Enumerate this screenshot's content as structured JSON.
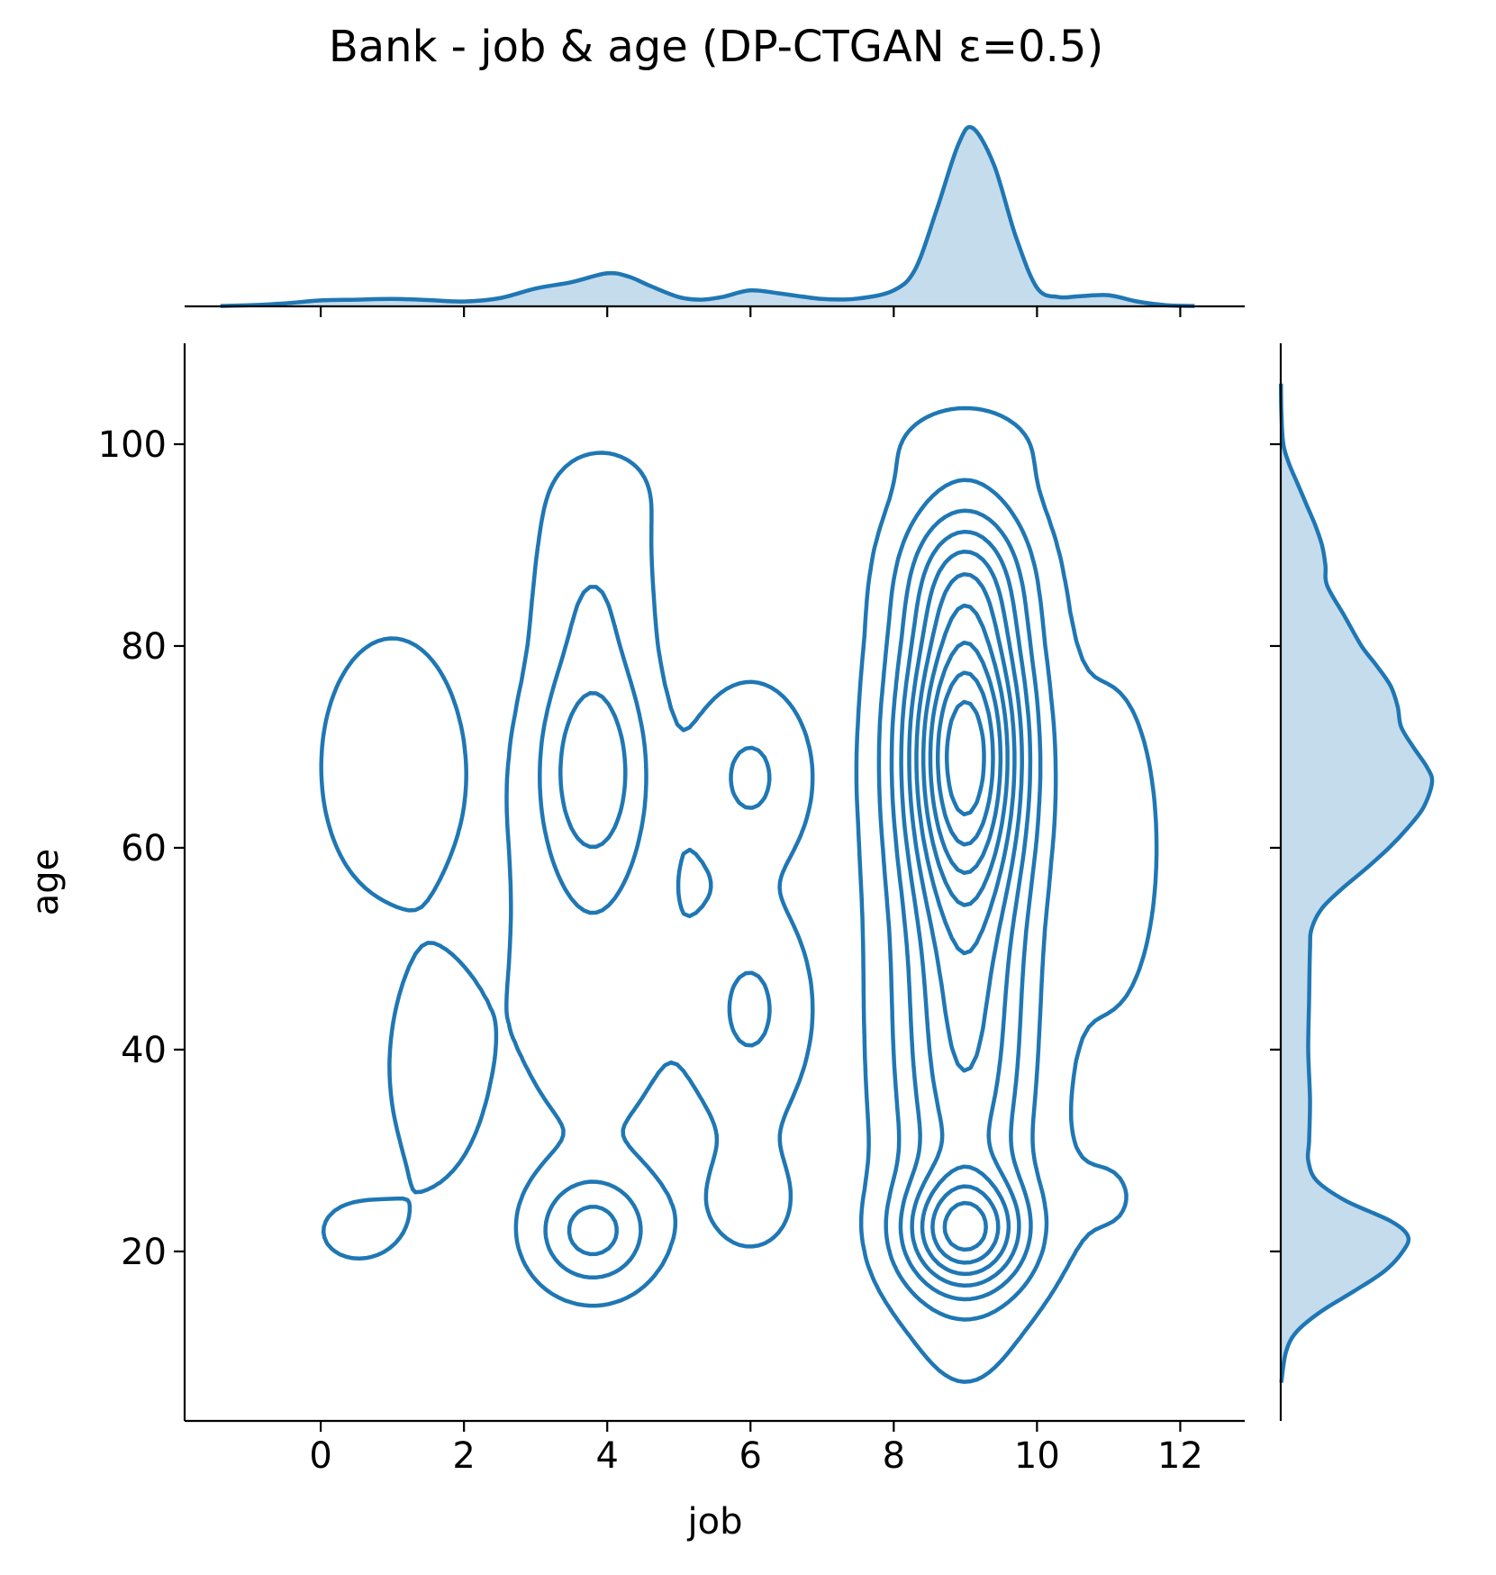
{
  "chart_data": {
    "type": "kde-joint",
    "title": "Bank - job & age (DP-CTGAN ε=0.5)",
    "xlabel": "job",
    "ylabel": "age",
    "xlim": [
      -1.9,
      12.9
    ],
    "ylim": [
      3.2,
      110
    ],
    "x_ticks": [
      0,
      2,
      4,
      6,
      8,
      10,
      12
    ],
    "y_ticks": [
      20,
      40,
      60,
      80,
      100
    ],
    "color": "#1f77b4",
    "fill_color": "#c5dced",
    "grid": false,
    "marginal_x": {
      "x": [
        -1.4,
        -1.0,
        -0.5,
        0.0,
        0.5,
        1.0,
        1.5,
        2.0,
        2.5,
        3.0,
        3.5,
        4.0,
        4.3,
        4.6,
        5.0,
        5.3,
        5.6,
        6.0,
        6.4,
        7.0,
        7.5,
        8.0,
        8.3,
        8.6,
        8.9,
        9.1,
        9.4,
        9.7,
        10.0,
        10.3,
        10.6,
        11.0,
        11.4,
        11.8,
        12.2
      ],
      "density": [
        0.002,
        0.006,
        0.016,
        0.032,
        0.036,
        0.04,
        0.034,
        0.026,
        0.044,
        0.096,
        0.13,
        0.178,
        0.16,
        0.11,
        0.05,
        0.036,
        0.05,
        0.086,
        0.07,
        0.04,
        0.042,
        0.086,
        0.2,
        0.52,
        0.87,
        0.96,
        0.76,
        0.38,
        0.1,
        0.05,
        0.055,
        0.06,
        0.026,
        0.006,
        0.002
      ]
    },
    "marginal_y": {
      "y": [
        7,
        10,
        12,
        14,
        16,
        18,
        20,
        21.5,
        23,
        25,
        27,
        29,
        31,
        35,
        40,
        45,
        50,
        52,
        54,
        56,
        58,
        60,
        62,
        64,
        66.5,
        68,
        70,
        72,
        74,
        76,
        78,
        80,
        83,
        86,
        88,
        90,
        92,
        94,
        96,
        98,
        100,
        103,
        106
      ],
      "density": [
        0.003,
        0.03,
        0.09,
        0.23,
        0.42,
        0.6,
        0.71,
        0.74,
        0.64,
        0.38,
        0.21,
        0.16,
        0.165,
        0.17,
        0.16,
        0.165,
        0.17,
        0.18,
        0.24,
        0.36,
        0.5,
        0.63,
        0.74,
        0.83,
        0.88,
        0.85,
        0.77,
        0.7,
        0.68,
        0.64,
        0.56,
        0.47,
        0.37,
        0.27,
        0.26,
        0.24,
        0.2,
        0.15,
        0.1,
        0.05,
        0.015,
        0.004,
        0.001
      ]
    },
    "kde_components": [
      {
        "x": 9.0,
        "y": 70.0,
        "sx": 0.55,
        "sy": 10.5,
        "w": 3.0
      },
      {
        "x": 9.0,
        "y": 42.0,
        "sx": 0.6,
        "sy": 15.0,
        "w": 1.2
      },
      {
        "x": 9.0,
        "y": 22.0,
        "sx": 0.55,
        "sy": 3.8,
        "w": 1.6
      },
      {
        "x": 9.0,
        "y": 87.0,
        "sx": 0.55,
        "sy": 5.0,
        "w": 0.7
      },
      {
        "x": 3.8,
        "y": 68.0,
        "sx": 0.5,
        "sy": 7.5,
        "w": 0.8
      },
      {
        "x": 3.8,
        "y": 22.0,
        "sx": 0.5,
        "sy": 3.5,
        "w": 0.7
      },
      {
        "x": 3.8,
        "y": 85.0,
        "sx": 0.5,
        "sy": 6.0,
        "w": 0.25
      },
      {
        "x": 3.8,
        "y": 48.0,
        "sx": 0.8,
        "sy": 12.0,
        "w": 0.2
      },
      {
        "x": 6.0,
        "y": 67.0,
        "sx": 0.5,
        "sy": 5.5,
        "w": 0.35
      },
      {
        "x": 6.0,
        "y": 44.0,
        "sx": 0.5,
        "sy": 6.5,
        "w": 0.35
      },
      {
        "x": 6.0,
        "y": 25.0,
        "sx": 0.6,
        "sy": 5.0,
        "w": 0.12
      },
      {
        "x": 1.0,
        "y": 68.0,
        "sx": 0.7,
        "sy": 9.0,
        "w": 0.22
      },
      {
        "x": 1.6,
        "y": 38.0,
        "sx": 0.5,
        "sy": 8.0,
        "w": 0.18
      },
      {
        "x": 0.5,
        "y": 22.0,
        "sx": 0.7,
        "sy": 4.0,
        "w": 0.1
      },
      {
        "x": 11.0,
        "y": 60.0,
        "sx": 0.6,
        "sy": 14.0,
        "w": 0.15
      },
      {
        "x": 11.0,
        "y": 25.0,
        "sx": 0.6,
        "sy": 5.0,
        "w": 0.08
      },
      {
        "x": 4.0,
        "y": 96.0,
        "sx": 0.9,
        "sy": 5.0,
        "w": 0.08
      },
      {
        "x": 9.0,
        "y": 100.0,
        "sx": 0.9,
        "sy": 3.5,
        "w": 0.1
      }
    ],
    "contour_levels": 10
  }
}
